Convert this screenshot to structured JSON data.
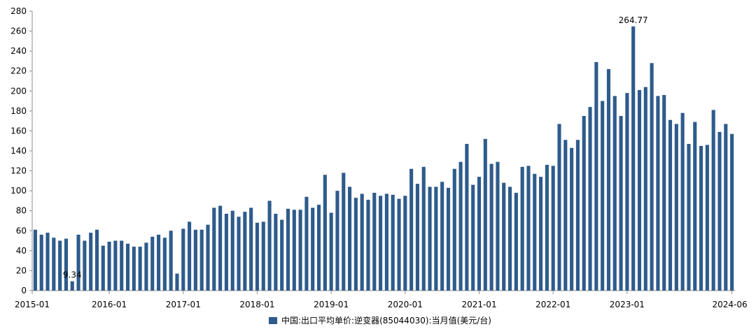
{
  "chart_data": {
    "type": "bar",
    "title": "",
    "xlabel": "",
    "ylabel": "",
    "ylim": [
      0,
      280
    ],
    "yticks": [
      0,
      20,
      40,
      60,
      80,
      100,
      120,
      140,
      160,
      180,
      200,
      220,
      240,
      260,
      280
    ],
    "xtick_labels": [
      "2015-01",
      "2016-01",
      "2017-01",
      "2018-01",
      "2019-01",
      "2020-01",
      "2021-01",
      "2022-01",
      "2023-01",
      "2024-06"
    ],
    "grid": false,
    "legend_position": "bottom",
    "bar_color": "#2e5b8c",
    "categories": [
      "2015-01",
      "2015-02",
      "2015-03",
      "2015-04",
      "2015-05",
      "2015-06",
      "2015-07",
      "2015-08",
      "2015-09",
      "2015-10",
      "2015-11",
      "2015-12",
      "2016-01",
      "2016-02",
      "2016-03",
      "2016-04",
      "2016-05",
      "2016-06",
      "2016-07",
      "2016-08",
      "2016-09",
      "2016-10",
      "2016-11",
      "2016-12",
      "2017-01",
      "2017-02",
      "2017-03",
      "2017-04",
      "2017-05",
      "2017-06",
      "2017-07",
      "2017-08",
      "2017-09",
      "2017-10",
      "2017-11",
      "2017-12",
      "2018-01",
      "2018-02",
      "2018-03",
      "2018-04",
      "2018-05",
      "2018-06",
      "2018-07",
      "2018-08",
      "2018-09",
      "2018-10",
      "2018-11",
      "2018-12",
      "2019-01",
      "2019-02",
      "2019-03",
      "2019-04",
      "2019-05",
      "2019-06",
      "2019-07",
      "2019-08",
      "2019-09",
      "2019-10",
      "2019-11",
      "2019-12",
      "2020-01",
      "2020-02",
      "2020-03",
      "2020-04",
      "2020-05",
      "2020-06",
      "2020-07",
      "2020-08",
      "2020-09",
      "2020-10",
      "2020-11",
      "2020-12",
      "2021-01",
      "2021-02",
      "2021-03",
      "2021-04",
      "2021-05",
      "2021-06",
      "2021-07",
      "2021-08",
      "2021-09",
      "2021-10",
      "2021-11",
      "2021-12",
      "2022-01",
      "2022-02",
      "2022-03",
      "2022-04",
      "2022-05",
      "2022-06",
      "2022-07",
      "2022-08",
      "2022-09",
      "2022-10",
      "2022-11",
      "2022-12",
      "2023-01",
      "2023-02",
      "2023-03",
      "2023-04",
      "2023-05",
      "2023-06",
      "2023-07",
      "2023-08",
      "2023-09",
      "2023-10",
      "2023-11",
      "2023-12",
      "2024-01",
      "2024-02",
      "2024-03",
      "2024-04",
      "2024-05",
      "2024-06"
    ],
    "series": [
      {
        "name": "中国:出口平均单价:逆变器(85044030):当月值(美元/台)",
        "values": [
          61,
          56,
          58,
          53,
          50,
          52,
          9.34,
          56,
          50,
          58,
          61,
          45,
          49,
          50,
          50,
          47,
          44,
          44,
          48,
          54,
          56,
          53,
          60,
          17,
          62,
          69,
          61,
          61,
          66,
          83,
          85,
          77,
          80,
          74,
          79,
          83,
          68,
          69,
          90,
          77,
          71,
          82,
          81,
          81,
          94,
          83,
          86,
          116,
          78,
          100,
          118,
          104,
          93,
          97,
          91,
          98,
          95,
          97,
          96,
          92,
          95,
          122,
          107,
          124,
          104,
          104,
          109,
          103,
          122,
          129,
          147,
          106,
          114,
          152,
          127,
          129,
          108,
          104,
          98,
          124,
          125,
          117,
          114,
          126,
          125,
          167,
          151,
          143,
          151,
          175,
          184,
          229,
          190,
          222,
          195,
          175,
          198,
          264.77,
          201,
          204,
          228,
          195,
          196,
          171,
          167,
          178,
          147,
          169,
          145,
          146,
          181,
          159,
          167,
          157
        ]
      }
    ],
    "annotations": [
      {
        "category": "2015-07",
        "text": "9.34"
      },
      {
        "category": "2023-02",
        "text": "264.77"
      }
    ]
  }
}
